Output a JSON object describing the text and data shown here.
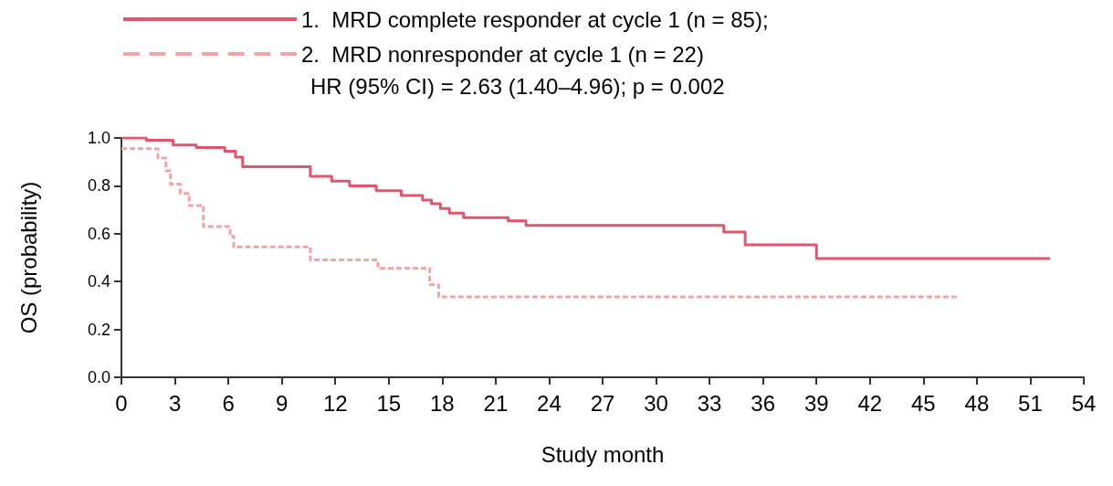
{
  "chart_data": {
    "type": "step",
    "xlabel": "Study month",
    "ylabel": "OS (probability)",
    "xlim": [
      0,
      54
    ],
    "xticks": [
      0,
      3,
      6,
      9,
      12,
      15,
      18,
      21,
      24,
      27,
      30,
      33,
      36,
      39,
      42,
      45,
      48,
      51,
      54
    ],
    "ylim": [
      0,
      1
    ],
    "yticks": [
      {
        "value": 0,
        "label": "0.0"
      },
      {
        "value": 0.2,
        "label": "0.2"
      },
      {
        "value": 0.4,
        "label": "0.4"
      },
      {
        "value": 0.6,
        "label": "0.6"
      },
      {
        "value": 0.8,
        "label": "0.8"
      },
      {
        "value": 1,
        "label": "1.0"
      }
    ],
    "grid": false,
    "legend": "top",
    "marker": "none",
    "annotations": [
      "HR (95% CI) = 2.63 (1.40–4.96); p = 0.002"
    ],
    "series": [
      {
        "name": "1.  MRD complete responder at cycle 1 (n = 85);",
        "color": "#e0566e",
        "line_style": "solid",
        "x": [
          0,
          1.4,
          2.9,
          4.2,
          5.8,
          6.4,
          6.8,
          10.6,
          11.8,
          12.8,
          14.3,
          15.7,
          16.9,
          17.4,
          17.9,
          18.4,
          19.2,
          21.7,
          22.7,
          33.8,
          35.0,
          39.0,
          52.1
        ],
        "values": [
          1.0,
          0.99,
          0.97,
          0.96,
          0.945,
          0.92,
          0.88,
          0.84,
          0.82,
          0.8,
          0.78,
          0.76,
          0.74,
          0.725,
          0.705,
          0.686,
          0.667,
          0.654,
          0.635,
          0.607,
          0.553,
          0.496,
          0.496
        ]
      },
      {
        "name": "2.  MRD nonresponder at cycle 1 (n = 22)",
        "color": "#f1a3a8",
        "line_style": "dashed",
        "x": [
          0,
          2.05,
          2.5,
          2.75,
          3.3,
          3.8,
          4.6,
          6.1,
          6.3,
          10.6,
          14.4,
          17.3,
          17.8,
          47.0
        ],
        "values": [
          0.955,
          0.916,
          0.863,
          0.807,
          0.768,
          0.718,
          0.63,
          0.59,
          0.545,
          0.49,
          0.455,
          0.387,
          0.336,
          0.336
        ]
      }
    ]
  }
}
